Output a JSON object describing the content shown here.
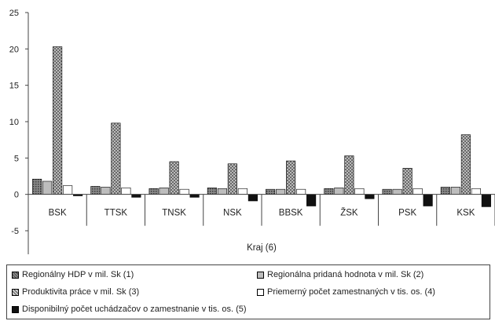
{
  "chart_data": {
    "type": "bar",
    "categories": [
      "BSK",
      "TTSK",
      "TNSK",
      "NSK",
      "BBSK",
      "ŽSK",
      "PSK",
      "KSK"
    ],
    "xlabel": "Kraj (6)",
    "ylabel": "",
    "ylim": [
      -5,
      25
    ],
    "yticks": [
      -5,
      0,
      5,
      10,
      15,
      20,
      25
    ],
    "grid": false,
    "legend_placement": "bottom",
    "series": [
      {
        "name": "Regionálny HDP v mil. Sk (1)",
        "pattern": "dots",
        "values": [
          2.1,
          1.1,
          0.8,
          0.9,
          0.7,
          0.8,
          0.7,
          1.0
        ]
      },
      {
        "name": "Regionálna  pridaná hodnota v mil. Sk (2)",
        "pattern": "light-gray",
        "values": [
          1.8,
          1.0,
          0.9,
          0.8,
          0.7,
          0.9,
          0.7,
          1.0
        ]
      },
      {
        "name": "Produktivita práce v mil. Sk (3)",
        "pattern": "crosshatch",
        "values": [
          20.3,
          9.8,
          4.5,
          4.2,
          4.6,
          5.3,
          3.6,
          8.2
        ]
      },
      {
        "name": "Priemerný počet zamestnaných v tis. os. (4)",
        "pattern": "white",
        "values": [
          1.2,
          0.9,
          0.7,
          0.8,
          0.7,
          0.8,
          0.8,
          0.8
        ]
      },
      {
        "name": "Disponibilný počet uchádzačov o zamestnanie v tis. os. (5)",
        "pattern": "black",
        "values": [
          -0.2,
          -0.4,
          -0.4,
          -0.9,
          -1.6,
          -0.6,
          -1.6,
          -1.7
        ]
      }
    ]
  }
}
